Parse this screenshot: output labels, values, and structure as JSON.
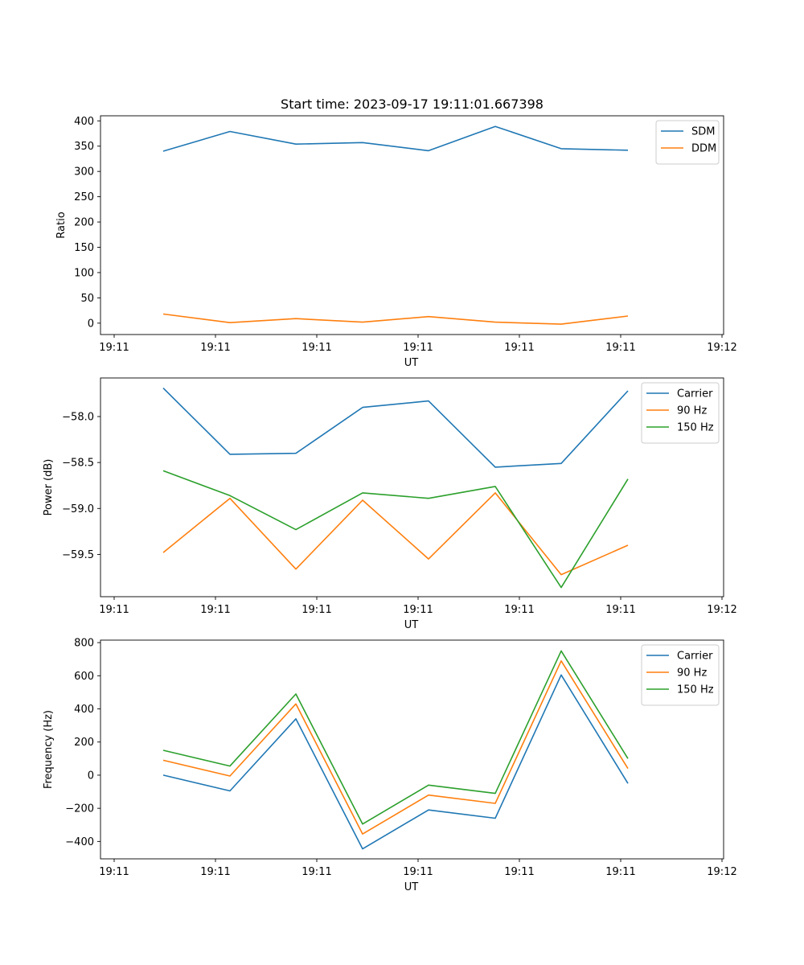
{
  "chart_data": [
    {
      "type": "line",
      "title": "Start time: 2023-09-17 19:11:01.667398",
      "xlabel": "UT",
      "ylabel": "Ratio",
      "x_tick_labels": [
        "19:11",
        "19:11",
        "19:11",
        "19:11",
        "19:11",
        "19:11",
        "19:11",
        "19:12"
      ],
      "y_ticks": [
        0,
        50,
        100,
        150,
        200,
        250,
        300,
        350,
        400
      ],
      "y_tick_labels": [
        "0",
        "50",
        "100",
        "150",
        "200",
        "250",
        "300",
        "350",
        "400"
      ],
      "ylim": [
        -22.5,
        410
      ],
      "legend_position": "top-right",
      "series": [
        {
          "name": "SDM",
          "color": "#1f77b4",
          "values": [
            340,
            379,
            354,
            357,
            341,
            389,
            345,
            342
          ]
        },
        {
          "name": "DDM",
          "color": "#ff7f0e",
          "values": [
            18,
            1,
            9,
            2,
            13,
            2,
            -2,
            14
          ]
        }
      ]
    },
    {
      "type": "line",
      "title": "",
      "xlabel": "UT",
      "ylabel": "Power (dB)",
      "x_tick_labels": [
        "19:11",
        "19:11",
        "19:11",
        "19:11",
        "19:11",
        "19:11",
        "19:11",
        "19:12"
      ],
      "y_ticks": [
        -58.0,
        -58.5,
        -59.0,
        -59.5
      ],
      "y_tick_labels": [
        "−58.0",
        "−58.5",
        "−59.0",
        "−59.5"
      ],
      "ylim": [
        -59.96,
        -57.58
      ],
      "legend_position": "top-right",
      "series": [
        {
          "name": "Carrier",
          "color": "#1f77b4",
          "values": [
            -57.69,
            -58.41,
            -58.4,
            -57.9,
            -57.83,
            -58.55,
            -58.51,
            -57.72
          ]
        },
        {
          "name": "90 Hz",
          "color": "#ff7f0e",
          "values": [
            -59.48,
            -58.89,
            -59.66,
            -58.91,
            -59.55,
            -58.83,
            -59.72,
            -59.4
          ]
        },
        {
          "name": "150 Hz",
          "color": "#2ca02c",
          "values": [
            -58.59,
            -58.86,
            -59.23,
            -58.83,
            -58.89,
            -58.76,
            -59.86,
            -58.68
          ]
        }
      ]
    },
    {
      "type": "line",
      "title": "",
      "xlabel": "UT",
      "ylabel": "Frequency (Hz)",
      "x_tick_labels": [
        "19:11",
        "19:11",
        "19:11",
        "19:11",
        "19:11",
        "19:11",
        "19:11",
        "19:12"
      ],
      "y_ticks": [
        -400,
        -200,
        0,
        200,
        400,
        600,
        800
      ],
      "y_tick_labels": [
        "−400",
        "−200",
        "0",
        "200",
        "400",
        "600",
        "800"
      ],
      "ylim": [
        -505,
        815
      ],
      "legend_position": "top-right",
      "series": [
        {
          "name": "Carrier",
          "color": "#1f77b4",
          "values": [
            0,
            -95,
            340,
            -445,
            -210,
            -260,
            605,
            -50
          ]
        },
        {
          "name": "90 Hz",
          "color": "#ff7f0e",
          "values": [
            90,
            -5,
            430,
            -355,
            -120,
            -170,
            690,
            40
          ]
        },
        {
          "name": "150 Hz",
          "color": "#2ca02c",
          "values": [
            150,
            55,
            490,
            -295,
            -60,
            -110,
            750,
            100
          ]
        }
      ]
    }
  ]
}
